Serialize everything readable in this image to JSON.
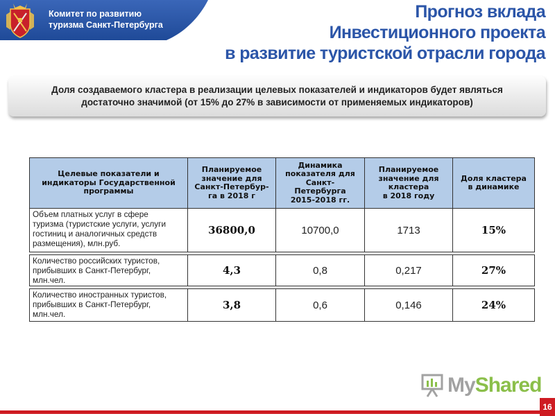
{
  "header": {
    "org_line1": "Комитет по развитию",
    "org_line2": "туризма Санкт-Петербурга",
    "title_line1": "Прогноз вклада",
    "title_line2": "Инвестиционного проекта",
    "title_line3": "в развитие туристской отрасли города"
  },
  "banner": {
    "line1": "Доля создаваемого кластера в реализации целевых показателей и индикаторов будет являться",
    "line2": "достаточно значимой (от 15% до 27% в зависимости от применяемых индикаторов)"
  },
  "table": {
    "headers": [
      [
        "Целевые показатели и",
        "индикаторы Государственной",
        "программы"
      ],
      [
        "Планируемое",
        "значение для",
        "Санкт-Петербур-",
        "га в 2018 г"
      ],
      [
        "Динамика",
        "показателя для",
        "Санкт-",
        "Петербурга",
        "2015-2018 гг."
      ],
      [
        "Планируемое",
        "значение для",
        "кластера",
        "в 2018 году"
      ],
      [
        "Доля кластера",
        "в динамике"
      ]
    ],
    "rows": [
      {
        "label": [
          "Объем платных услуг в сфере",
          "туризма (туристские услуги, услуги",
          "гостиниц и аналогичных средств",
          "размещения), млн.руб."
        ],
        "plan_city": "36800,0",
        "dynamics": "10700,0",
        "plan_cluster": "1713",
        "share": "15%"
      },
      {
        "label": [
          "Количество российских туристов,",
          "прибывших в Санкт-Петербург,",
          "млн.чел."
        ],
        "plan_city": "4,3",
        "dynamics": "0,8",
        "plan_cluster": "0,217",
        "share": "27%"
      },
      {
        "label": [
          "Количество иностранных туристов,",
          "прибывших в Санкт-Петербург,",
          "млн.чел."
        ],
        "plan_city": "3,8",
        "dynamics": "0,6",
        "plan_cluster": "0,146",
        "share": "24%"
      }
    ]
  },
  "logo": {
    "part1": "My",
    "part2": "Shared"
  },
  "page_number": "16",
  "colors": {
    "header_blue": "#2b55a8",
    "table_header": "#b4cce8",
    "accent_red": "#ce1b22",
    "logo_green": "#8bbf4a"
  },
  "icons": {
    "emblem": "saint-petersburg-coat-of-arms-icon",
    "logo": "presentation-board-icon"
  }
}
